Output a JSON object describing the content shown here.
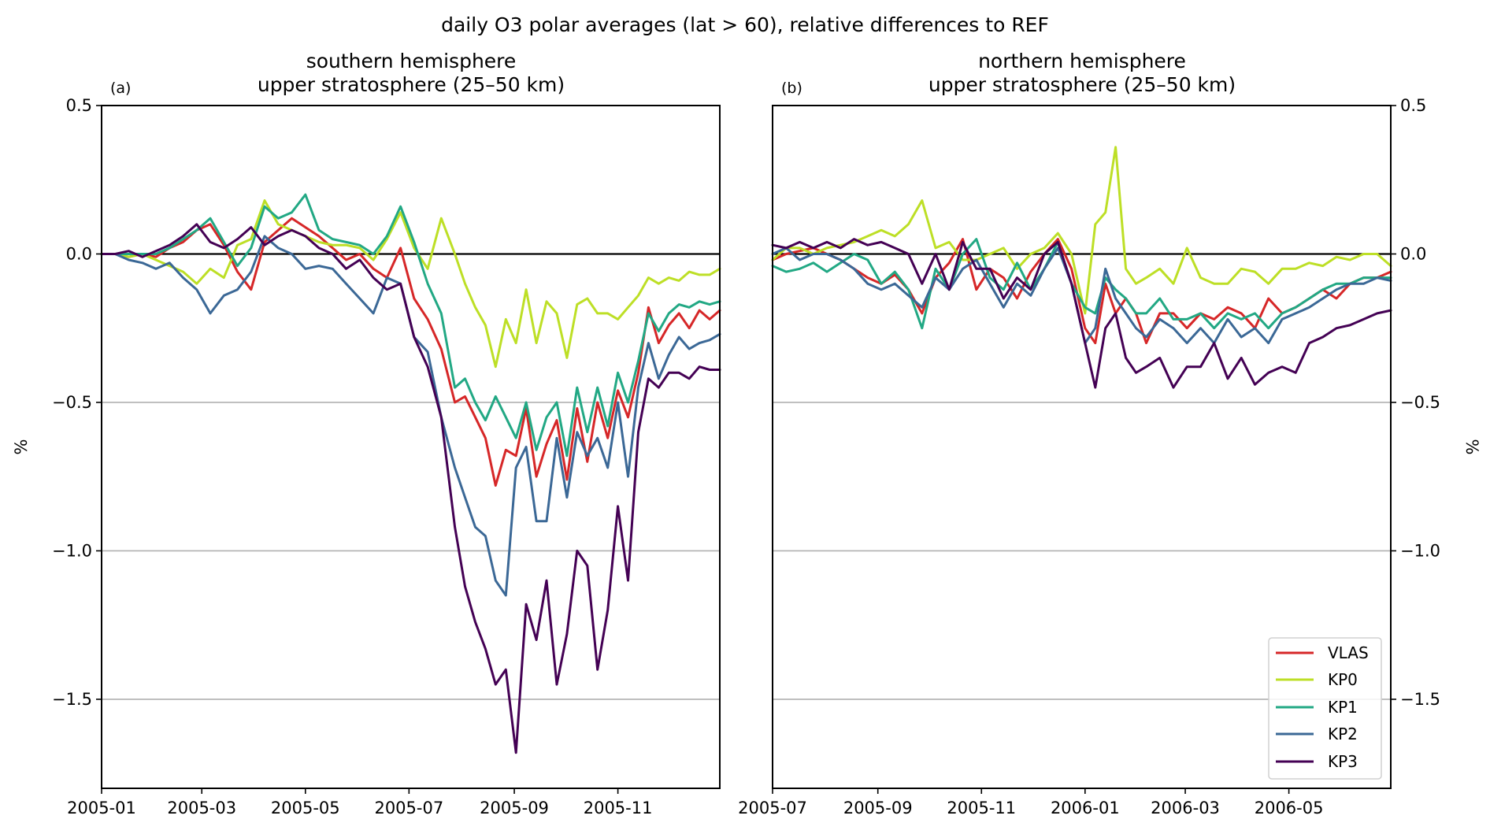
{
  "chart_data": {
    "type": "line",
    "suptitle": "daily O3 polar averages (lat > 60), relative differences to REF",
    "legend": {
      "placement": "lower-right",
      "panel": 1,
      "entries": [
        "VLAS",
        "KP0",
        "KP1",
        "KP2",
        "KP3"
      ]
    },
    "series_colors": {
      "VLAS": "#d62728",
      "KP0": "#bddf26",
      "KP1": "#22a884",
      "KP2": "#3b6896",
      "KP3": "#440154"
    },
    "zero_line_color": "#000000",
    "grid": {
      "axis": "y",
      "color": "#b0b0b0"
    },
    "panels": [
      {
        "label": "(a)",
        "title_line1": "southern hemisphere",
        "title_line2": "upper stratosphere (25–50 km)",
        "ylabel": "%",
        "ylabel_side": "left",
        "ylim": [
          -1.8,
          0.5
        ],
        "yticks": [
          0.5,
          0.0,
          -0.5,
          -1.0,
          -1.5
        ],
        "ytick_labels": [
          "0.5",
          "0.0",
          "−0.5",
          "−1.0",
          "−1.5"
        ],
        "xlim_days": [
          0,
          364
        ],
        "x_start": "2005-01-01",
        "xticks_days": [
          0,
          59,
          120,
          181,
          243,
          304
        ],
        "xtick_labels": [
          "2005-01",
          "2005-03",
          "2005-05",
          "2005-07",
          "2005-09",
          "2005-11"
        ],
        "x_days": [
          0,
          8,
          16,
          24,
          32,
          40,
          48,
          56,
          64,
          72,
          80,
          88,
          96,
          104,
          112,
          120,
          128,
          136,
          144,
          152,
          160,
          168,
          176,
          184,
          192,
          200,
          208,
          214,
          220,
          226,
          232,
          238,
          244,
          250,
          256,
          262,
          268,
          274,
          280,
          286,
          292,
          298,
          304,
          310,
          316,
          322,
          328,
          334,
          340,
          346,
          352,
          358,
          364
        ],
        "series": [
          {
            "name": "VLAS",
            "values": [
              0.0,
              0.0,
              -0.01,
              0.0,
              -0.01,
              0.02,
              0.04,
              0.08,
              0.1,
              0.03,
              -0.06,
              -0.12,
              0.04,
              0.08,
              0.12,
              0.09,
              0.06,
              0.02,
              -0.02,
              0.0,
              -0.05,
              -0.08,
              0.02,
              -0.15,
              -0.22,
              -0.32,
              -0.5,
              -0.48,
              -0.55,
              -0.62,
              -0.78,
              -0.66,
              -0.68,
              -0.52,
              -0.75,
              -0.64,
              -0.56,
              -0.76,
              -0.52,
              -0.7,
              -0.5,
              -0.62,
              -0.46,
              -0.55,
              -0.4,
              -0.18,
              -0.3,
              -0.24,
              -0.2,
              -0.25,
              -0.19,
              -0.22,
              -0.19
            ]
          },
          {
            "name": "KP0",
            "values": [
              0.0,
              0.0,
              -0.01,
              0.0,
              -0.02,
              -0.04,
              -0.06,
              -0.1,
              -0.05,
              -0.08,
              0.03,
              0.05,
              0.18,
              0.1,
              0.08,
              0.06,
              0.04,
              0.03,
              0.03,
              0.02,
              -0.02,
              0.05,
              0.14,
              0.02,
              -0.05,
              0.12,
              0.0,
              -0.1,
              -0.18,
              -0.24,
              -0.38,
              -0.22,
              -0.3,
              -0.12,
              -0.3,
              -0.16,
              -0.2,
              -0.35,
              -0.17,
              -0.15,
              -0.2,
              -0.2,
              -0.22,
              -0.18,
              -0.14,
              -0.08,
              -0.1,
              -0.08,
              -0.09,
              -0.06,
              -0.07,
              -0.07,
              -0.05
            ]
          },
          {
            "name": "KP1",
            "values": [
              0.0,
              0.0,
              0.0,
              0.0,
              0.0,
              0.02,
              0.05,
              0.08,
              0.12,
              0.04,
              -0.04,
              0.02,
              0.16,
              0.12,
              0.14,
              0.2,
              0.08,
              0.05,
              0.04,
              0.03,
              0.0,
              0.06,
              0.16,
              0.04,
              -0.1,
              -0.2,
              -0.45,
              -0.42,
              -0.5,
              -0.56,
              -0.48,
              -0.55,
              -0.62,
              -0.5,
              -0.66,
              -0.55,
              -0.5,
              -0.68,
              -0.45,
              -0.6,
              -0.45,
              -0.58,
              -0.4,
              -0.5,
              -0.36,
              -0.2,
              -0.26,
              -0.2,
              -0.17,
              -0.18,
              -0.16,
              -0.17,
              -0.16
            ]
          },
          {
            "name": "KP2",
            "values": [
              0.0,
              0.0,
              -0.02,
              -0.03,
              -0.05,
              -0.03,
              -0.08,
              -0.12,
              -0.2,
              -0.14,
              -0.12,
              -0.06,
              0.06,
              0.02,
              0.0,
              -0.05,
              -0.04,
              -0.05,
              -0.1,
              -0.15,
              -0.2,
              -0.08,
              -0.1,
              -0.28,
              -0.33,
              -0.55,
              -0.72,
              -0.82,
              -0.92,
              -0.95,
              -1.1,
              -1.15,
              -0.72,
              -0.65,
              -0.9,
              -0.9,
              -0.62,
              -0.82,
              -0.6,
              -0.68,
              -0.62,
              -0.72,
              -0.5,
              -0.75,
              -0.45,
              -0.3,
              -0.42,
              -0.34,
              -0.28,
              -0.32,
              -0.3,
              -0.29,
              -0.27
            ]
          },
          {
            "name": "KP3",
            "values": [
              0.0,
              0.0,
              0.01,
              -0.01,
              0.01,
              0.03,
              0.06,
              0.1,
              0.04,
              0.02,
              0.05,
              0.09,
              0.03,
              0.06,
              0.08,
              0.06,
              0.02,
              0.0,
              -0.05,
              -0.02,
              -0.08,
              -0.12,
              -0.1,
              -0.28,
              -0.38,
              -0.55,
              -0.92,
              -1.12,
              -1.24,
              -1.33,
              -1.45,
              -1.4,
              -1.68,
              -1.18,
              -1.3,
              -1.1,
              -1.45,
              -1.28,
              -1.0,
              -1.05,
              -1.4,
              -1.2,
              -0.85,
              -1.1,
              -0.6,
              -0.42,
              -0.45,
              -0.4,
              -0.4,
              -0.42,
              -0.38,
              -0.39,
              -0.39
            ]
          }
        ]
      },
      {
        "label": "(b)",
        "title_line1": "northern hemisphere",
        "title_line2": "upper stratosphere (25–50 km)",
        "ylabel": "%",
        "ylabel_side": "right",
        "ylim": [
          -1.8,
          0.5
        ],
        "yticks": [
          0.5,
          0.0,
          -0.5,
          -1.0,
          -1.5
        ],
        "ytick_labels": [
          "0.5",
          "0.0",
          "−0.5",
          "−1.0",
          "−1.5"
        ],
        "xlim_days": [
          0,
          364
        ],
        "x_start": "2005-07-01",
        "xticks_days": [
          0,
          62,
          123,
          184,
          243,
          304
        ],
        "xtick_labels": [
          "2005-07",
          "2005-09",
          "2005-11",
          "2006-01",
          "2006-03",
          "2006-05"
        ],
        "x_days": [
          0,
          8,
          16,
          24,
          32,
          40,
          48,
          56,
          64,
          72,
          80,
          88,
          96,
          104,
          112,
          120,
          128,
          136,
          144,
          152,
          160,
          168,
          176,
          184,
          190,
          196,
          202,
          208,
          214,
          220,
          228,
          236,
          244,
          252,
          260,
          268,
          276,
          284,
          292,
          300,
          308,
          316,
          324,
          332,
          340,
          348,
          356,
          364
        ],
        "series": [
          {
            "name": "VLAS",
            "values": [
              -0.02,
              0.0,
              0.01,
              0.02,
              0.0,
              -0.02,
              -0.05,
              -0.08,
              -0.1,
              -0.07,
              -0.12,
              -0.2,
              -0.08,
              -0.03,
              0.05,
              -0.12,
              -0.05,
              -0.08,
              -0.15,
              -0.06,
              0.0,
              0.05,
              -0.05,
              -0.25,
              -0.3,
              -0.1,
              -0.2,
              -0.15,
              -0.2,
              -0.3,
              -0.2,
              -0.2,
              -0.25,
              -0.2,
              -0.22,
              -0.18,
              -0.2,
              -0.25,
              -0.15,
              -0.2,
              -0.18,
              -0.15,
              -0.12,
              -0.15,
              -0.1,
              -0.08,
              -0.08,
              -0.06
            ]
          },
          {
            "name": "KP0",
            "values": [
              -0.02,
              0.02,
              0.02,
              0.0,
              0.02,
              0.03,
              0.04,
              0.06,
              0.08,
              0.06,
              0.1,
              0.18,
              0.02,
              0.04,
              -0.02,
              -0.02,
              0.0,
              0.02,
              -0.05,
              0.0,
              0.02,
              0.07,
              0.0,
              -0.2,
              0.1,
              0.14,
              0.36,
              -0.05,
              -0.1,
              -0.08,
              -0.05,
              -0.1,
              0.02,
              -0.08,
              -0.1,
              -0.1,
              -0.05,
              -0.06,
              -0.1,
              -0.05,
              -0.05,
              -0.03,
              -0.04,
              -0.01,
              -0.02,
              0.0,
              0.0,
              -0.04
            ]
          },
          {
            "name": "KP1",
            "values": [
              -0.04,
              -0.06,
              -0.05,
              -0.03,
              -0.06,
              -0.03,
              0.0,
              -0.02,
              -0.1,
              -0.06,
              -0.12,
              -0.25,
              -0.05,
              -0.12,
              0.0,
              0.05,
              -0.08,
              -0.12,
              -0.03,
              -0.12,
              -0.05,
              0.04,
              -0.1,
              -0.18,
              -0.2,
              -0.08,
              -0.12,
              -0.15,
              -0.2,
              -0.2,
              -0.15,
              -0.22,
              -0.22,
              -0.2,
              -0.25,
              -0.2,
              -0.22,
              -0.2,
              -0.25,
              -0.2,
              -0.18,
              -0.15,
              -0.12,
              -0.1,
              -0.1,
              -0.08,
              -0.08,
              -0.08
            ]
          },
          {
            "name": "KP2",
            "values": [
              0.0,
              0.02,
              -0.02,
              0.0,
              0.0,
              -0.02,
              -0.05,
              -0.1,
              -0.12,
              -0.1,
              -0.14,
              -0.18,
              -0.08,
              -0.12,
              -0.05,
              -0.02,
              -0.1,
              -0.18,
              -0.1,
              -0.14,
              -0.05,
              0.02,
              -0.1,
              -0.3,
              -0.25,
              -0.05,
              -0.15,
              -0.2,
              -0.25,
              -0.28,
              -0.22,
              -0.25,
              -0.3,
              -0.25,
              -0.3,
              -0.22,
              -0.28,
              -0.25,
              -0.3,
              -0.22,
              -0.2,
              -0.18,
              -0.15,
              -0.12,
              -0.1,
              -0.1,
              -0.08,
              -0.09
            ]
          },
          {
            "name": "KP3",
            "values": [
              0.03,
              0.02,
              0.04,
              0.02,
              0.04,
              0.02,
              0.05,
              0.03,
              0.04,
              0.02,
              0.0,
              -0.1,
              0.0,
              -0.12,
              0.04,
              -0.05,
              -0.05,
              -0.15,
              -0.08,
              -0.12,
              0.0,
              0.04,
              -0.1,
              -0.3,
              -0.45,
              -0.25,
              -0.2,
              -0.35,
              -0.4,
              -0.38,
              -0.35,
              -0.45,
              -0.38,
              -0.38,
              -0.3,
              -0.42,
              -0.35,
              -0.44,
              -0.4,
              -0.38,
              -0.4,
              -0.3,
              -0.28,
              -0.25,
              -0.24,
              -0.22,
              -0.2,
              -0.19
            ]
          }
        ]
      }
    ]
  }
}
